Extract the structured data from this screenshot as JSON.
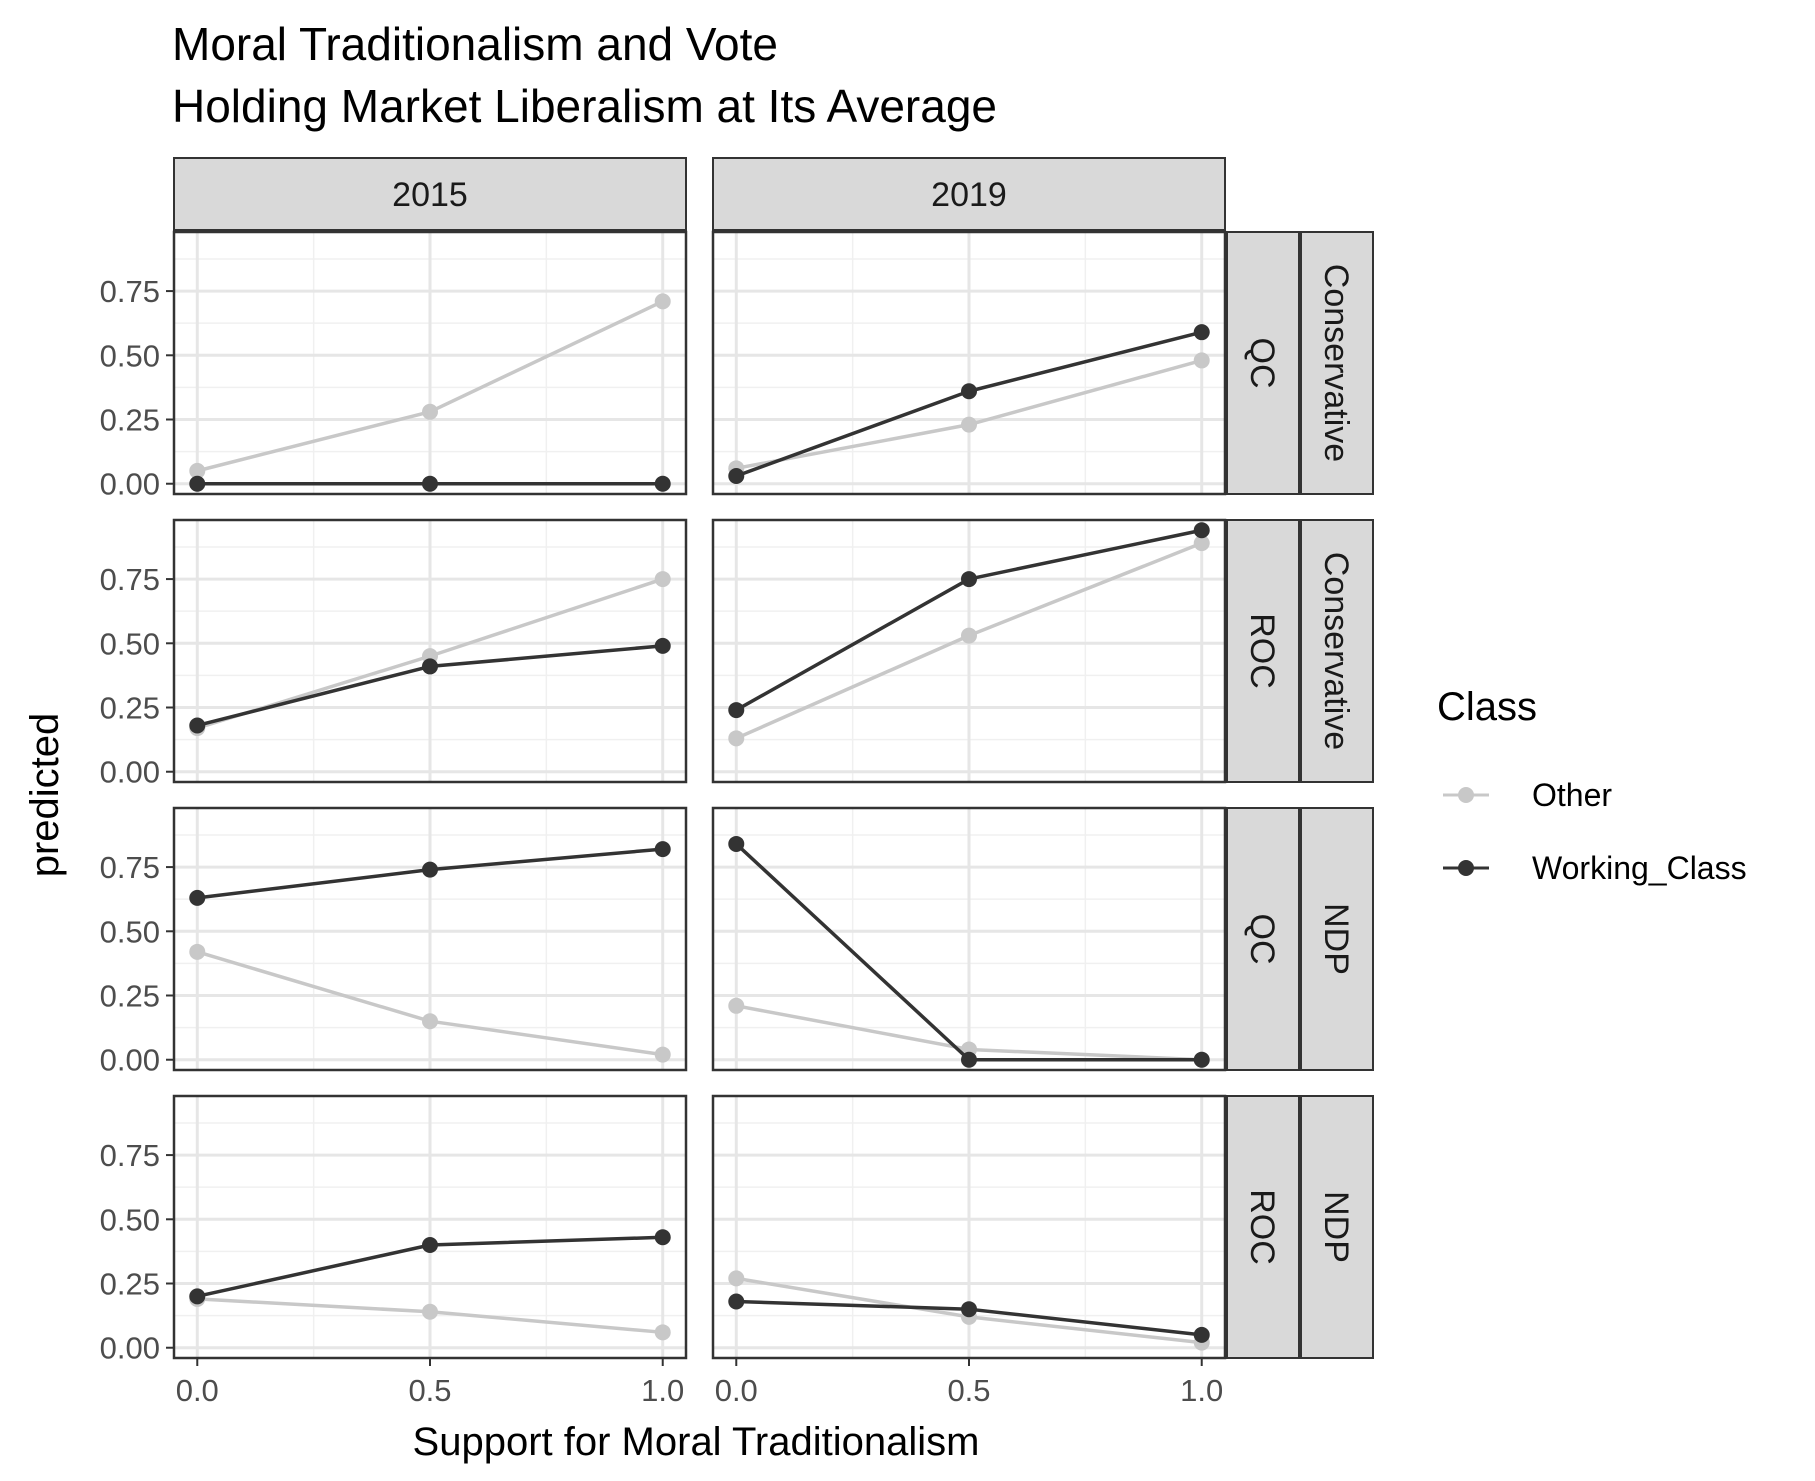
{
  "title_line1": "Moral Traditionalism and Vote",
  "title_line2": "Holding Market Liberalism at Its Average",
  "chart_data": {
    "type": "line",
    "xlabel": "Support for Moral Traditionalism",
    "ylabel": "predicted",
    "x": [
      0.0,
      0.5,
      1.0
    ],
    "xlim": [
      -0.05,
      1.05
    ],
    "ylim": [
      -0.04,
      0.98
    ],
    "x_ticks": [
      "0.0",
      "0.5",
      "1.0"
    ],
    "y_ticks": [
      "0.00",
      "0.25",
      "0.50",
      "0.75"
    ],
    "columns": [
      "2015",
      "2019"
    ],
    "rows": [
      {
        "region": "QC",
        "party": "Conservative"
      },
      {
        "region": "ROC",
        "party": "Conservative"
      },
      {
        "region": "QC",
        "party": "NDP"
      },
      {
        "region": "ROC",
        "party": "NDP"
      }
    ],
    "legend_title": "Class",
    "legend_position": "right",
    "grid": true,
    "series_names": [
      "Other",
      "Working_Class"
    ],
    "colors": {
      "Other": "#c8c8c8",
      "Working_Class": "#333333"
    },
    "panels": [
      {
        "column": "2015",
        "region": "QC",
        "party": "Conservative",
        "Other": [
          0.05,
          0.28,
          0.71
        ],
        "Working_Class": [
          0.0,
          0.0,
          0.0
        ]
      },
      {
        "column": "2019",
        "region": "QC",
        "party": "Conservative",
        "Other": [
          0.06,
          0.23,
          0.48
        ],
        "Working_Class": [
          0.03,
          0.36,
          0.59
        ]
      },
      {
        "column": "2015",
        "region": "ROC",
        "party": "Conservative",
        "Other": [
          0.17,
          0.45,
          0.75
        ],
        "Working_Class": [
          0.18,
          0.41,
          0.49
        ]
      },
      {
        "column": "2019",
        "region": "ROC",
        "party": "Conservative",
        "Other": [
          0.13,
          0.53,
          0.89
        ],
        "Working_Class": [
          0.24,
          0.75,
          0.94
        ]
      },
      {
        "column": "2015",
        "region": "QC",
        "party": "NDP",
        "Other": [
          0.42,
          0.15,
          0.02
        ],
        "Working_Class": [
          0.63,
          0.74,
          0.82
        ]
      },
      {
        "column": "2019",
        "region": "QC",
        "party": "NDP",
        "Other": [
          0.21,
          0.04,
          0.0
        ],
        "Working_Class": [
          0.84,
          0.0,
          0.0
        ]
      },
      {
        "column": "2015",
        "region": "ROC",
        "party": "NDP",
        "Other": [
          0.19,
          0.14,
          0.06
        ],
        "Working_Class": [
          0.2,
          0.4,
          0.43
        ]
      },
      {
        "column": "2019",
        "region": "ROC",
        "party": "NDP",
        "Other": [
          0.27,
          0.12,
          0.02
        ],
        "Working_Class": [
          0.18,
          0.15,
          0.05
        ]
      }
    ]
  }
}
